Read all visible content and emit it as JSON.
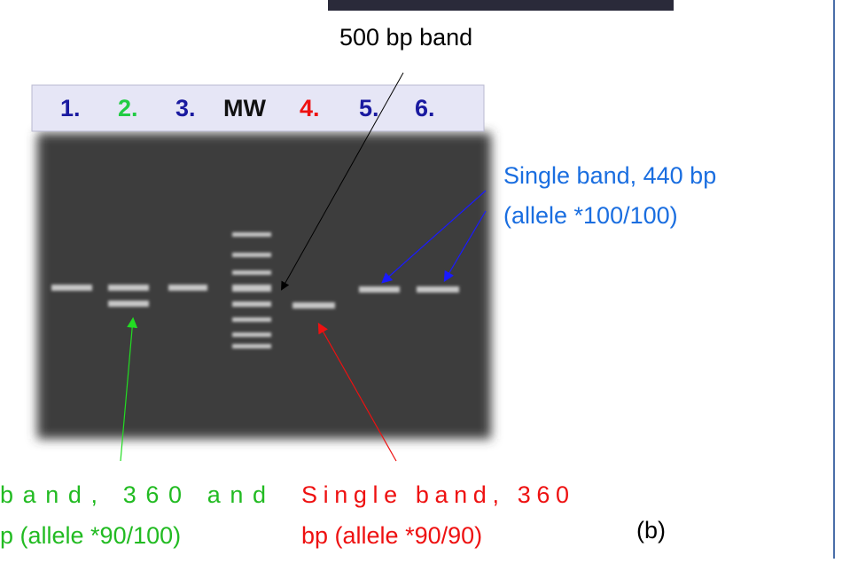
{
  "figure": {
    "marker_label": "500 bp band",
    "lanes": [
      "1.",
      "2.",
      "3.",
      "MW",
      "4.",
      "5.",
      "6."
    ],
    "blue_note": [
      "Single band, 440 bp",
      "(allele *100/100)"
    ],
    "green_note": [
      "band, 360 and",
      "p (allele *90/100)"
    ],
    "red_note": [
      "Single band, 360",
      "bp (allele *90/90)"
    ],
    "panel": "(b)"
  }
}
